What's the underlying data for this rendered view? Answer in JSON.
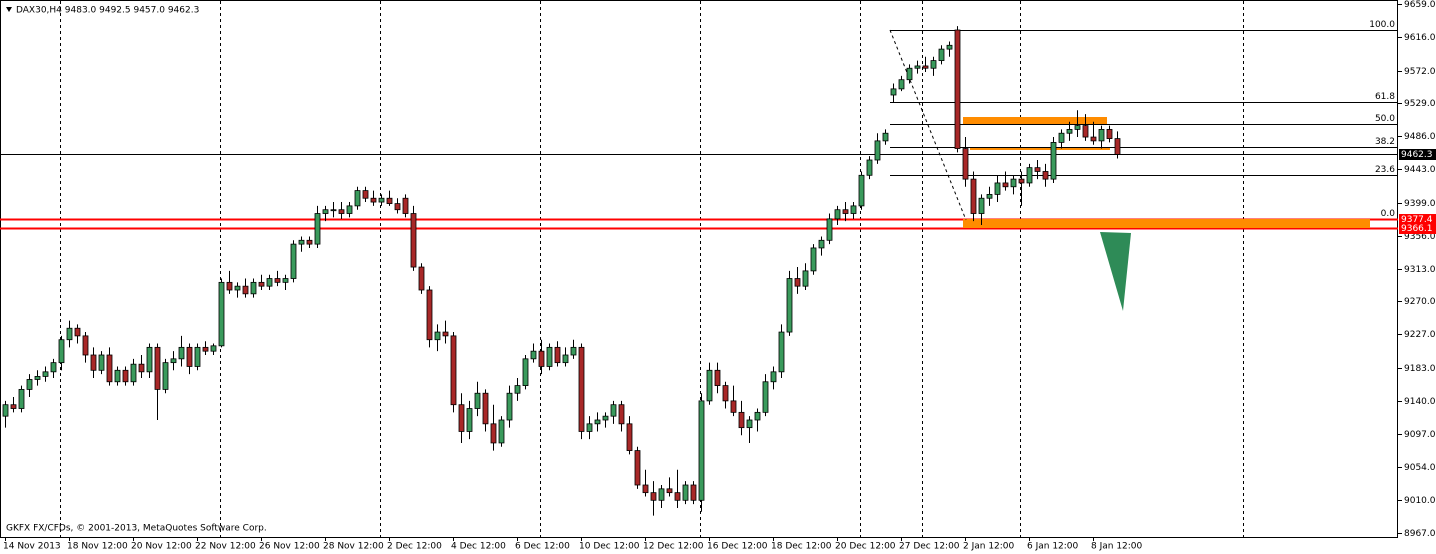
{
  "chart_data": {
    "type": "candlestick",
    "title": "DAX30,H4  9483.0 9492.5 9457.0 9462.3",
    "footer": "GKFX FX/CFDs, © 2001-2013, MetaQuotes Software Corp.",
    "up_color": "#3a9a5c",
    "down_color": "#a82828",
    "ylim": [
      8962,
      9659
    ],
    "xlim": [
      -0.625,
      174.125
    ],
    "yticks": [
      {
        "value": 9659,
        "label": "9659.0"
      },
      {
        "value": 9616,
        "label": "9616.0"
      },
      {
        "value": 9572,
        "label": "9572.0"
      },
      {
        "value": 9529,
        "label": "9529.0"
      },
      {
        "value": 9486,
        "label": "9486.0"
      },
      {
        "value": 9443,
        "label": "9443.0"
      },
      {
        "value": 9399,
        "label": "9399.0"
      },
      {
        "value": 9356,
        "label": "9356.0"
      },
      {
        "value": 9313,
        "label": "9313.0"
      },
      {
        "value": 9270,
        "label": "9270.0"
      },
      {
        "value": 9227,
        "label": "9227.0"
      },
      {
        "value": 9183,
        "label": "9183.0"
      },
      {
        "value": 9140,
        "label": "9140.0"
      },
      {
        "value": 9097,
        "label": "9097.0"
      },
      {
        "value": 9054,
        "label": "9054.0"
      },
      {
        "value": 9010,
        "label": "9010.0"
      },
      {
        "value": 8967,
        "label": "8967.0"
      }
    ],
    "xticks": [
      {
        "value": 0,
        "label": "14 Nov 2013"
      },
      {
        "value": 8,
        "label": "18 Nov 12:00"
      },
      {
        "value": 16,
        "label": "20 Nov 12:00"
      },
      {
        "value": 24,
        "label": "22 Nov 12:00"
      },
      {
        "value": 32,
        "label": "26 Nov 12:00"
      },
      {
        "value": 40,
        "label": "28 Nov 12:00"
      },
      {
        "value": 48,
        "label": "2 Dec 12:00"
      },
      {
        "value": 56,
        "label": "4 Dec 12:00"
      },
      {
        "value": 64,
        "label": "6 Dec 12:00"
      },
      {
        "value": 72,
        "label": "10 Dec 12:00"
      },
      {
        "value": 80,
        "label": "12 Dec 12:00"
      },
      {
        "value": 88,
        "label": "16 Dec 12:00"
      },
      {
        "value": 96,
        "label": "18 Dec 12:00"
      },
      {
        "value": 104,
        "label": "20 Dec 12:00"
      },
      {
        "value": 112,
        "label": "27 Dec 12:00"
      },
      {
        "value": 120,
        "label": "2 Jan 12:00"
      },
      {
        "value": 128,
        "label": "6 Jan 12:00"
      },
      {
        "value": 136,
        "label": "8 Jan 12:00"
      }
    ],
    "xgrid": [
      6.875,
      26.875,
      46.875,
      66.875,
      86.875,
      106.875,
      114.625,
      126.875,
      154.75
    ],
    "hlines": [
      {
        "value": 9462.3,
        "color": "#000000"
      },
      {
        "value": 9377.4,
        "color": "#ff0000"
      },
      {
        "value": 9366.1,
        "color": "#ff0000"
      }
    ],
    "fib": {
      "levels": [
        {
          "value": 100,
          "label": "100.0"
        },
        {
          "value": 61.8,
          "label": "61.8"
        },
        {
          "value": 50,
          "label": "50.0"
        },
        {
          "value": 38.2,
          "label": "38.2"
        },
        {
          "value": 23.6,
          "label": "23.6"
        },
        {
          "value": 0,
          "label": "0.0"
        }
      ],
      "prices": [
        9625,
        9531,
        9502,
        9472,
        9436,
        9378
      ]
    },
    "ohlc": [
      [
        9120,
        9140,
        9105,
        9135
      ],
      [
        9135,
        9145,
        9125,
        9130
      ],
      [
        9130,
        9160,
        9125,
        9155
      ],
      [
        9155,
        9175,
        9145,
        9168
      ],
      [
        9168,
        9180,
        9160,
        9172
      ],
      [
        9172,
        9185,
        9165,
        9178
      ],
      [
        9178,
        9195,
        9170,
        9190
      ],
      [
        9190,
        9225,
        9180,
        9220
      ],
      [
        9220,
        9245,
        9210,
        9235
      ],
      [
        9235,
        9240,
        9215,
        9225
      ],
      [
        9225,
        9230,
        9190,
        9200
      ],
      [
        9200,
        9210,
        9170,
        9180
      ],
      [
        9180,
        9205,
        9175,
        9200
      ],
      [
        9200,
        9210,
        9160,
        9165
      ],
      [
        9165,
        9185,
        9160,
        9180
      ],
      [
        9180,
        9185,
        9160,
        9165
      ],
      [
        9165,
        9195,
        9160,
        9188
      ],
      [
        9188,
        9200,
        9170,
        9178
      ],
      [
        9178,
        9215,
        9170,
        9210
      ],
      [
        9210,
        9215,
        9115,
        9155
      ],
      [
        9155,
        9195,
        9150,
        9190
      ],
      [
        9190,
        9205,
        9180,
        9195
      ],
      [
        9195,
        9225,
        9185,
        9210
      ],
      [
        9210,
        9215,
        9175,
        9185
      ],
      [
        9185,
        9215,
        9180,
        9210
      ],
      [
        9210,
        9218,
        9200,
        9205
      ],
      [
        9205,
        9215,
        9200,
        9212
      ],
      [
        9212,
        9300,
        9210,
        9295
      ],
      [
        9295,
        9310,
        9280,
        9285
      ],
      [
        9285,
        9295,
        9275,
        9290
      ],
      [
        9290,
        9300,
        9275,
        9280
      ],
      [
        9280,
        9300,
        9275,
        9295
      ],
      [
        9295,
        9305,
        9285,
        9290
      ],
      [
        9290,
        9305,
        9285,
        9300
      ],
      [
        9300,
        9310,
        9290,
        9295
      ],
      [
        9295,
        9305,
        9285,
        9300
      ],
      [
        9300,
        9350,
        9295,
        9345
      ],
      [
        9345,
        9355,
        9335,
        9350
      ],
      [
        9350,
        9355,
        9340,
        9345
      ],
      [
        9345,
        9395,
        9340,
        9385
      ],
      [
        9385,
        9395,
        9375,
        9390
      ],
      [
        9390,
        9400,
        9380,
        9390
      ],
      [
        9390,
        9400,
        9378,
        9385
      ],
      [
        9385,
        9400,
        9380,
        9395
      ],
      [
        9395,
        9420,
        9390,
        9415
      ],
      [
        9415,
        9420,
        9400,
        9405
      ],
      [
        9405,
        9415,
        9395,
        9400
      ],
      [
        9400,
        9410,
        9395,
        9405
      ],
      [
        9405,
        9415,
        9395,
        9398
      ],
      [
        9398,
        9405,
        9385,
        9390
      ],
      [
        9405,
        9410,
        9380,
        9385
      ],
      [
        9385,
        9395,
        9310,
        9315
      ],
      [
        9315,
        9320,
        9280,
        9285
      ],
      [
        9285,
        9290,
        9210,
        9220
      ],
      [
        9220,
        9240,
        9205,
        9230
      ],
      [
        9230,
        9245,
        9215,
        9225
      ],
      [
        9225,
        9230,
        9125,
        9135
      ],
      [
        9135,
        9150,
        9085,
        9100
      ],
      [
        9100,
        9140,
        9090,
        9130
      ],
      [
        9130,
        9165,
        9120,
        9150
      ],
      [
        9150,
        9155,
        9100,
        9110
      ],
      [
        9110,
        9135,
        9075,
        9085
      ],
      [
        9085,
        9120,
        9080,
        9115
      ],
      [
        9115,
        9160,
        9105,
        9150
      ],
      [
        9150,
        9170,
        9140,
        9160
      ],
      [
        9160,
        9200,
        9155,
        9195
      ],
      [
        9195,
        9215,
        9190,
        9205
      ],
      [
        9205,
        9220,
        9175,
        9185
      ],
      [
        9185,
        9215,
        9180,
        9210
      ],
      [
        9210,
        9218,
        9185,
        9190
      ],
      [
        9190,
        9210,
        9185,
        9200
      ],
      [
        9200,
        9220,
        9195,
        9210
      ],
      [
        9210,
        9215,
        9090,
        9100
      ],
      [
        9100,
        9120,
        9090,
        9110
      ],
      [
        9110,
        9125,
        9100,
        9115
      ],
      [
        9115,
        9125,
        9105,
        9120
      ],
      [
        9120,
        9140,
        9110,
        9135
      ],
      [
        9135,
        9140,
        9100,
        9110
      ],
      [
        9110,
        9120,
        9070,
        9075
      ],
      [
        9075,
        9080,
        9025,
        9030
      ],
      [
        9030,
        9050,
        9015,
        9020
      ],
      [
        9020,
        9035,
        8990,
        9010
      ],
      [
        9010,
        9030,
        9000,
        9025
      ],
      [
        9025,
        9040,
        9015,
        9020
      ],
      [
        9020,
        9050,
        9000,
        9010
      ],
      [
        9010,
        9035,
        9005,
        9030
      ],
      [
        9030,
        9035,
        9005,
        9010
      ],
      [
        9010,
        9150,
        8995,
        9140
      ],
      [
        9140,
        9190,
        9135,
        9180
      ],
      [
        9180,
        9190,
        9150,
        9160
      ],
      [
        9160,
        9165,
        9130,
        9140
      ],
      [
        9140,
        9160,
        9120,
        9125
      ],
      [
        9125,
        9140,
        9095,
        9105
      ],
      [
        9105,
        9120,
        9085,
        9115
      ],
      [
        9115,
        9130,
        9100,
        9125
      ],
      [
        9125,
        9175,
        9120,
        9165
      ],
      [
        9165,
        9185,
        9155,
        9178
      ],
      [
        9178,
        9240,
        9170,
        9230
      ],
      [
        9230,
        9310,
        9225,
        9300
      ],
      [
        9300,
        9315,
        9280,
        9290
      ],
      [
        9290,
        9320,
        9285,
        9310
      ],
      [
        9310,
        9345,
        9305,
        9340
      ],
      [
        9340,
        9355,
        9330,
        9350
      ],
      [
        9350,
        9385,
        9345,
        9378
      ],
      [
        9378,
        9395,
        9370,
        9390
      ],
      [
        9390,
        9400,
        9375,
        9385
      ],
      [
        9385,
        9400,
        9378,
        9395
      ],
      [
        9395,
        9440,
        9390,
        9435
      ],
      [
        9435,
        9460,
        9430,
        9455
      ],
      [
        9455,
        9490,
        9450,
        9480
      ],
      [
        9480,
        9495,
        9475,
        9490
      ],
      [
        9540,
        9555,
        9530,
        9548
      ],
      [
        9548,
        9565,
        9545,
        9560
      ],
      [
        9560,
        9580,
        9555,
        9575
      ],
      [
        9575,
        9585,
        9568,
        9578
      ],
      [
        9578,
        9590,
        9570,
        9575
      ],
      [
        9575,
        9590,
        9565,
        9585
      ],
      [
        9585,
        9605,
        9580,
        9600
      ],
      [
        9600,
        9610,
        9590,
        9605
      ],
      [
        9625,
        9630,
        9465,
        9470
      ],
      [
        9470,
        9485,
        9420,
        9430
      ],
      [
        9430,
        9440,
        9375,
        9385
      ],
      [
        9385,
        9410,
        9370,
        9405
      ],
      [
        9405,
        9420,
        9395,
        9410
      ],
      [
        9410,
        9435,
        9400,
        9425
      ],
      [
        9425,
        9440,
        9415,
        9420
      ],
      [
        9420,
        9435,
        9410,
        9430
      ],
      [
        9430,
        9440,
        9395,
        9425
      ],
      [
        9425,
        9450,
        9420,
        9445
      ],
      [
        9445,
        9455,
        9430,
        9440
      ],
      [
        9440,
        9450,
        9420,
        9430
      ],
      [
        9430,
        9485,
        9425,
        9478
      ],
      [
        9478,
        9495,
        9470,
        9490
      ],
      [
        9490,
        9505,
        9480,
        9495
      ],
      [
        9495,
        9520,
        9485,
        9500
      ],
      [
        9500,
        9515,
        9480,
        9485
      ],
      [
        9485,
        9505,
        9475,
        9480
      ],
      [
        9480,
        9500,
        9470,
        9495
      ],
      [
        9495,
        9500,
        9478,
        9483
      ],
      [
        9483,
        9492.5,
        9457,
        9462.3
      ]
    ]
  }
}
